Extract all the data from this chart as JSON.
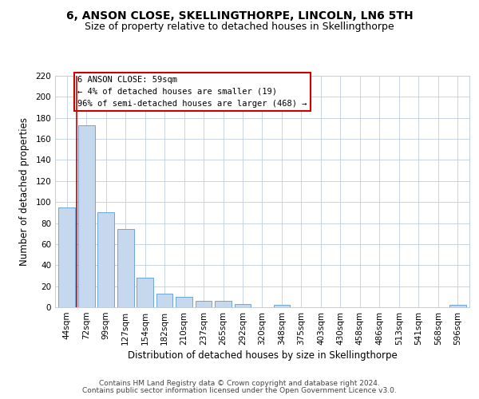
{
  "title": "6, ANSON CLOSE, SKELLINGTHORPE, LINCOLN, LN6 5TH",
  "subtitle": "Size of property relative to detached houses in Skellingthorpe",
  "xlabel": "Distribution of detached houses by size in Skellingthorpe",
  "ylabel": "Number of detached properties",
  "bar_labels": [
    "44sqm",
    "72sqm",
    "99sqm",
    "127sqm",
    "154sqm",
    "182sqm",
    "210sqm",
    "237sqm",
    "265sqm",
    "292sqm",
    "320sqm",
    "348sqm",
    "375sqm",
    "403sqm",
    "430sqm",
    "458sqm",
    "486sqm",
    "513sqm",
    "541sqm",
    "568sqm",
    "596sqm"
  ],
  "bar_values": [
    95,
    173,
    90,
    74,
    28,
    13,
    10,
    6,
    6,
    3,
    0,
    2,
    0,
    0,
    0,
    0,
    0,
    0,
    0,
    0,
    2
  ],
  "bar_color": "#c5d8ed",
  "bar_edgecolor": "#5b9bd5",
  "ylim": [
    0,
    220
  ],
  "yticks": [
    0,
    20,
    40,
    60,
    80,
    100,
    120,
    140,
    160,
    180,
    200,
    220
  ],
  "annotation_box_text": "6 ANSON CLOSE: 59sqm\n← 4% of detached houses are smaller (19)\n96% of semi-detached houses are larger (468) →",
  "annotation_box_color": "#cc0000",
  "vline_color": "#cc0000",
  "footer_line1": "Contains HM Land Registry data © Crown copyright and database right 2024.",
  "footer_line2": "Contains public sector information licensed under the Open Government Licence v3.0.",
  "bg_color": "#ffffff",
  "grid_color": "#c0cfe0",
  "title_fontsize": 10,
  "subtitle_fontsize": 9,
  "axis_label_fontsize": 8.5,
  "tick_fontsize": 7.5,
  "footer_fontsize": 6.5,
  "ann_fontsize": 7.5
}
